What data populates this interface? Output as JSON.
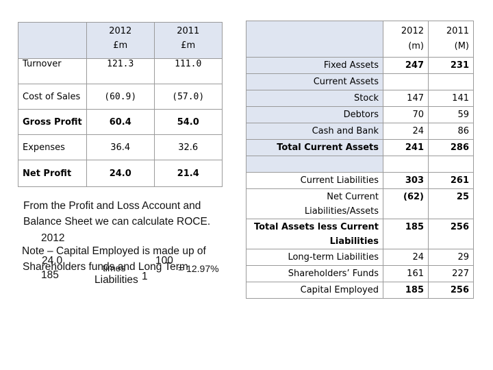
{
  "pl_table": {
    "header": {
      "y1": "2012",
      "y1_unit": "£m",
      "y2": "2011",
      "y2_unit": "£m"
    },
    "rows": [
      {
        "label": "Turnover",
        "v1": "121.3",
        "v2": "111.0"
      },
      {
        "label": "Cost of Sales",
        "v1": "(60.9)",
        "v2": "(57.0)"
      },
      {
        "label": "Gross Profit",
        "v1": "60.4",
        "v2": "54.0"
      },
      {
        "label": "Expenses",
        "v1": "36.4",
        "v2": "32.6"
      },
      {
        "label": "Net Profit",
        "v1": "24.0",
        "v2": "21.4"
      }
    ]
  },
  "bs_table": {
    "header": {
      "y1": "2012",
      "y1_unit": "(m)",
      "y2": "2011",
      "y2_unit": "(M)"
    },
    "rows": [
      {
        "label": "Fixed Assets",
        "v1": "247",
        "v2": "231"
      },
      {
        "label": "Current Assets",
        "v1": "",
        "v2": ""
      },
      {
        "label": "Stock",
        "v1": "147",
        "v2": "141"
      },
      {
        "label": "Debtors",
        "v1": "70",
        "v2": "59"
      },
      {
        "label": "Cash and Bank",
        "v1": "24",
        "v2": "86"
      },
      {
        "label": "Total Current Assets",
        "v1": "241",
        "v2": "286"
      },
      {
        "label": "",
        "v1": "",
        "v2": ""
      },
      {
        "label": "Current Liabilities",
        "v1": "303",
        "v2": "261"
      },
      {
        "label": "Net Current Liabilities/Assets",
        "v1": "(62)",
        "v2": "25"
      },
      {
        "label": "Total Assets less Current Liabilities",
        "v1": "185",
        "v2": "256"
      },
      {
        "label": "Long-term Liabilities",
        "v1": "24",
        "v2": "29"
      },
      {
        "label": "Shareholders’ Funds",
        "v1": "161",
        "v2": "227"
      },
      {
        "label": "Capital Employed",
        "v1": "185",
        "v2": "256"
      }
    ]
  },
  "note": {
    "line1": "From the Profit and Loss Account and",
    "line2": "Balance Sheet we can calculate ROCE.",
    "year": "2012",
    "line3": "Note – Capital Employed is made up of",
    "line4": "Shareholders funds and Long Term",
    "line5": "Liabilities",
    "calc_num": "24.0",
    "calc_den": "185",
    "times": "times",
    "factor_num": "100",
    "factor_den": "1",
    "result": "= 12.97%"
  }
}
